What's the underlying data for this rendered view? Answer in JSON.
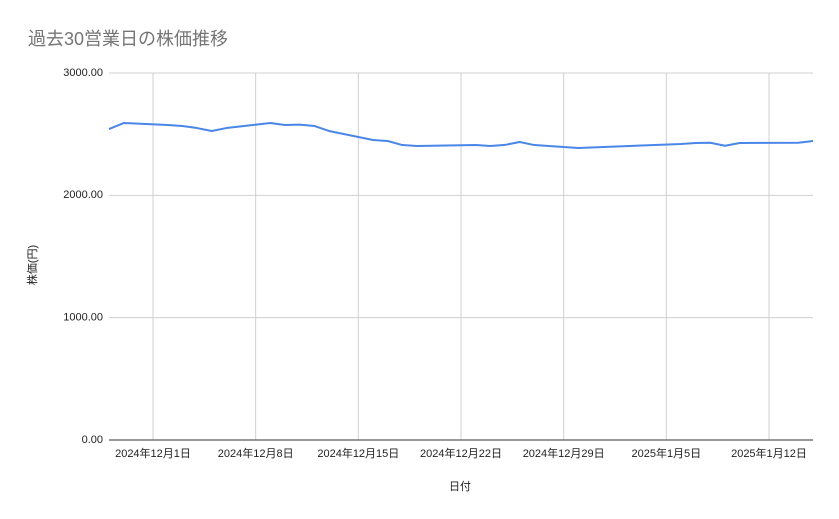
{
  "chart_data": {
    "type": "line",
    "title": "過去30営業日の株価推移",
    "x_label": "日付",
    "y_label": "株価(円)",
    "x": [
      "2024-11-28",
      "2024-11-29",
      "2024-12-02",
      "2024-12-03",
      "2024-12-04",
      "2024-12-05",
      "2024-12-06",
      "2024-12-09",
      "2024-12-10",
      "2024-12-11",
      "2024-12-12",
      "2024-12-13",
      "2024-12-16",
      "2024-12-17",
      "2024-12-18",
      "2024-12-19",
      "2024-12-20",
      "2024-12-23",
      "2024-12-24",
      "2024-12-25",
      "2024-12-26",
      "2024-12-27",
      "2024-12-30",
      "2025-01-06",
      "2025-01-07",
      "2025-01-08",
      "2025-01-09",
      "2025-01-10",
      "2025-01-14",
      "2025-01-15"
    ],
    "values": [
      2542,
      2591,
      2575,
      2567,
      2550,
      2526,
      2550,
      2591,
      2575,
      2578,
      2567,
      2526,
      2452,
      2444,
      2411,
      2403,
      2405,
      2411,
      2403,
      2412,
      2436,
      2411,
      2387,
      2420,
      2428,
      2430,
      2405,
      2428,
      2430,
      2444
    ],
    "color": "#4a86e8",
    "xlim": [
      "2024-11-28",
      "2025-01-15"
    ],
    "xticks": [
      {
        "value": "2024-12-01",
        "label": "2024年12月1日"
      },
      {
        "value": "2024-12-08",
        "label": "2024年12月8日"
      },
      {
        "value": "2024-12-15",
        "label": "2024年12月15日"
      },
      {
        "value": "2024-12-22",
        "label": "2024年12月22日"
      },
      {
        "value": "2024-12-29",
        "label": "2024年12月29日"
      },
      {
        "value": "2025-01-05",
        "label": "2025年1月5日"
      },
      {
        "value": "2025-01-12",
        "label": "2025年1月12日"
      }
    ],
    "ylim": [
      0,
      3000
    ],
    "yticks": [
      {
        "value": 0,
        "label": "0.00"
      },
      {
        "value": 1000,
        "label": "1000.00"
      },
      {
        "value": 2000,
        "label": "2000.00"
      },
      {
        "value": 3000,
        "label": "3000.00"
      }
    ],
    "grid": true
  }
}
